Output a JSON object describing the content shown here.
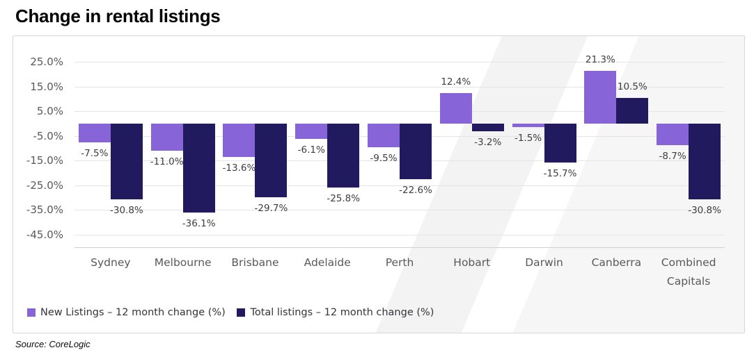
{
  "page": {
    "title": "Change in rental listings",
    "source": "Source: CoreLogic"
  },
  "chart_data": {
    "type": "bar",
    "title": "Change in rental listings",
    "categories": [
      "Sydney",
      "Melbourne",
      "Brisbane",
      "Adelaide",
      "Perth",
      "Hobart",
      "Darwin",
      "Canberra",
      "Combined Capitals"
    ],
    "series": [
      {
        "name": "New Listings – 12 month change (%)",
        "color": "#8765D9",
        "values": [
          -7.5,
          -11.0,
          -13.6,
          -6.1,
          -9.5,
          12.4,
          -1.5,
          21.3,
          -8.7
        ],
        "labels": [
          "-7.5%",
          "-11.0%",
          "-13.6%",
          "-6.1%",
          "-9.5%",
          "12.4%",
          "-1.5%",
          "21.3%",
          "-8.7%"
        ]
      },
      {
        "name": "Total listings – 12 month change (%)",
        "color": "#211A5E",
        "values": [
          -30.8,
          -36.1,
          -29.7,
          -25.8,
          -22.6,
          -3.2,
          -15.7,
          10.5,
          -30.8
        ],
        "labels": [
          "-30.8%",
          "-36.1%",
          "-29.7%",
          "-25.8%",
          "-22.6%",
          "-3.2%",
          "-15.7%",
          "10.5%",
          "-30.8%"
        ]
      }
    ],
    "y_ticks": [
      {
        "label": "25.0%",
        "value": 25
      },
      {
        "label": "15.0%",
        "value": 15
      },
      {
        "label": "5.0%",
        "value": 5
      },
      {
        "label": "-5.0%",
        "value": -5
      },
      {
        "label": "-15.0%",
        "value": -15
      },
      {
        "label": "-25.0%",
        "value": -25
      },
      {
        "label": "-35.0%",
        "value": -35
      },
      {
        "label": "-45.0%",
        "value": -45
      }
    ],
    "ylim": [
      -45,
      25
    ],
    "grid": true,
    "legend_position": "bottom",
    "xlabel": "",
    "ylabel": "",
    "source": "Source: CoreLogic"
  }
}
